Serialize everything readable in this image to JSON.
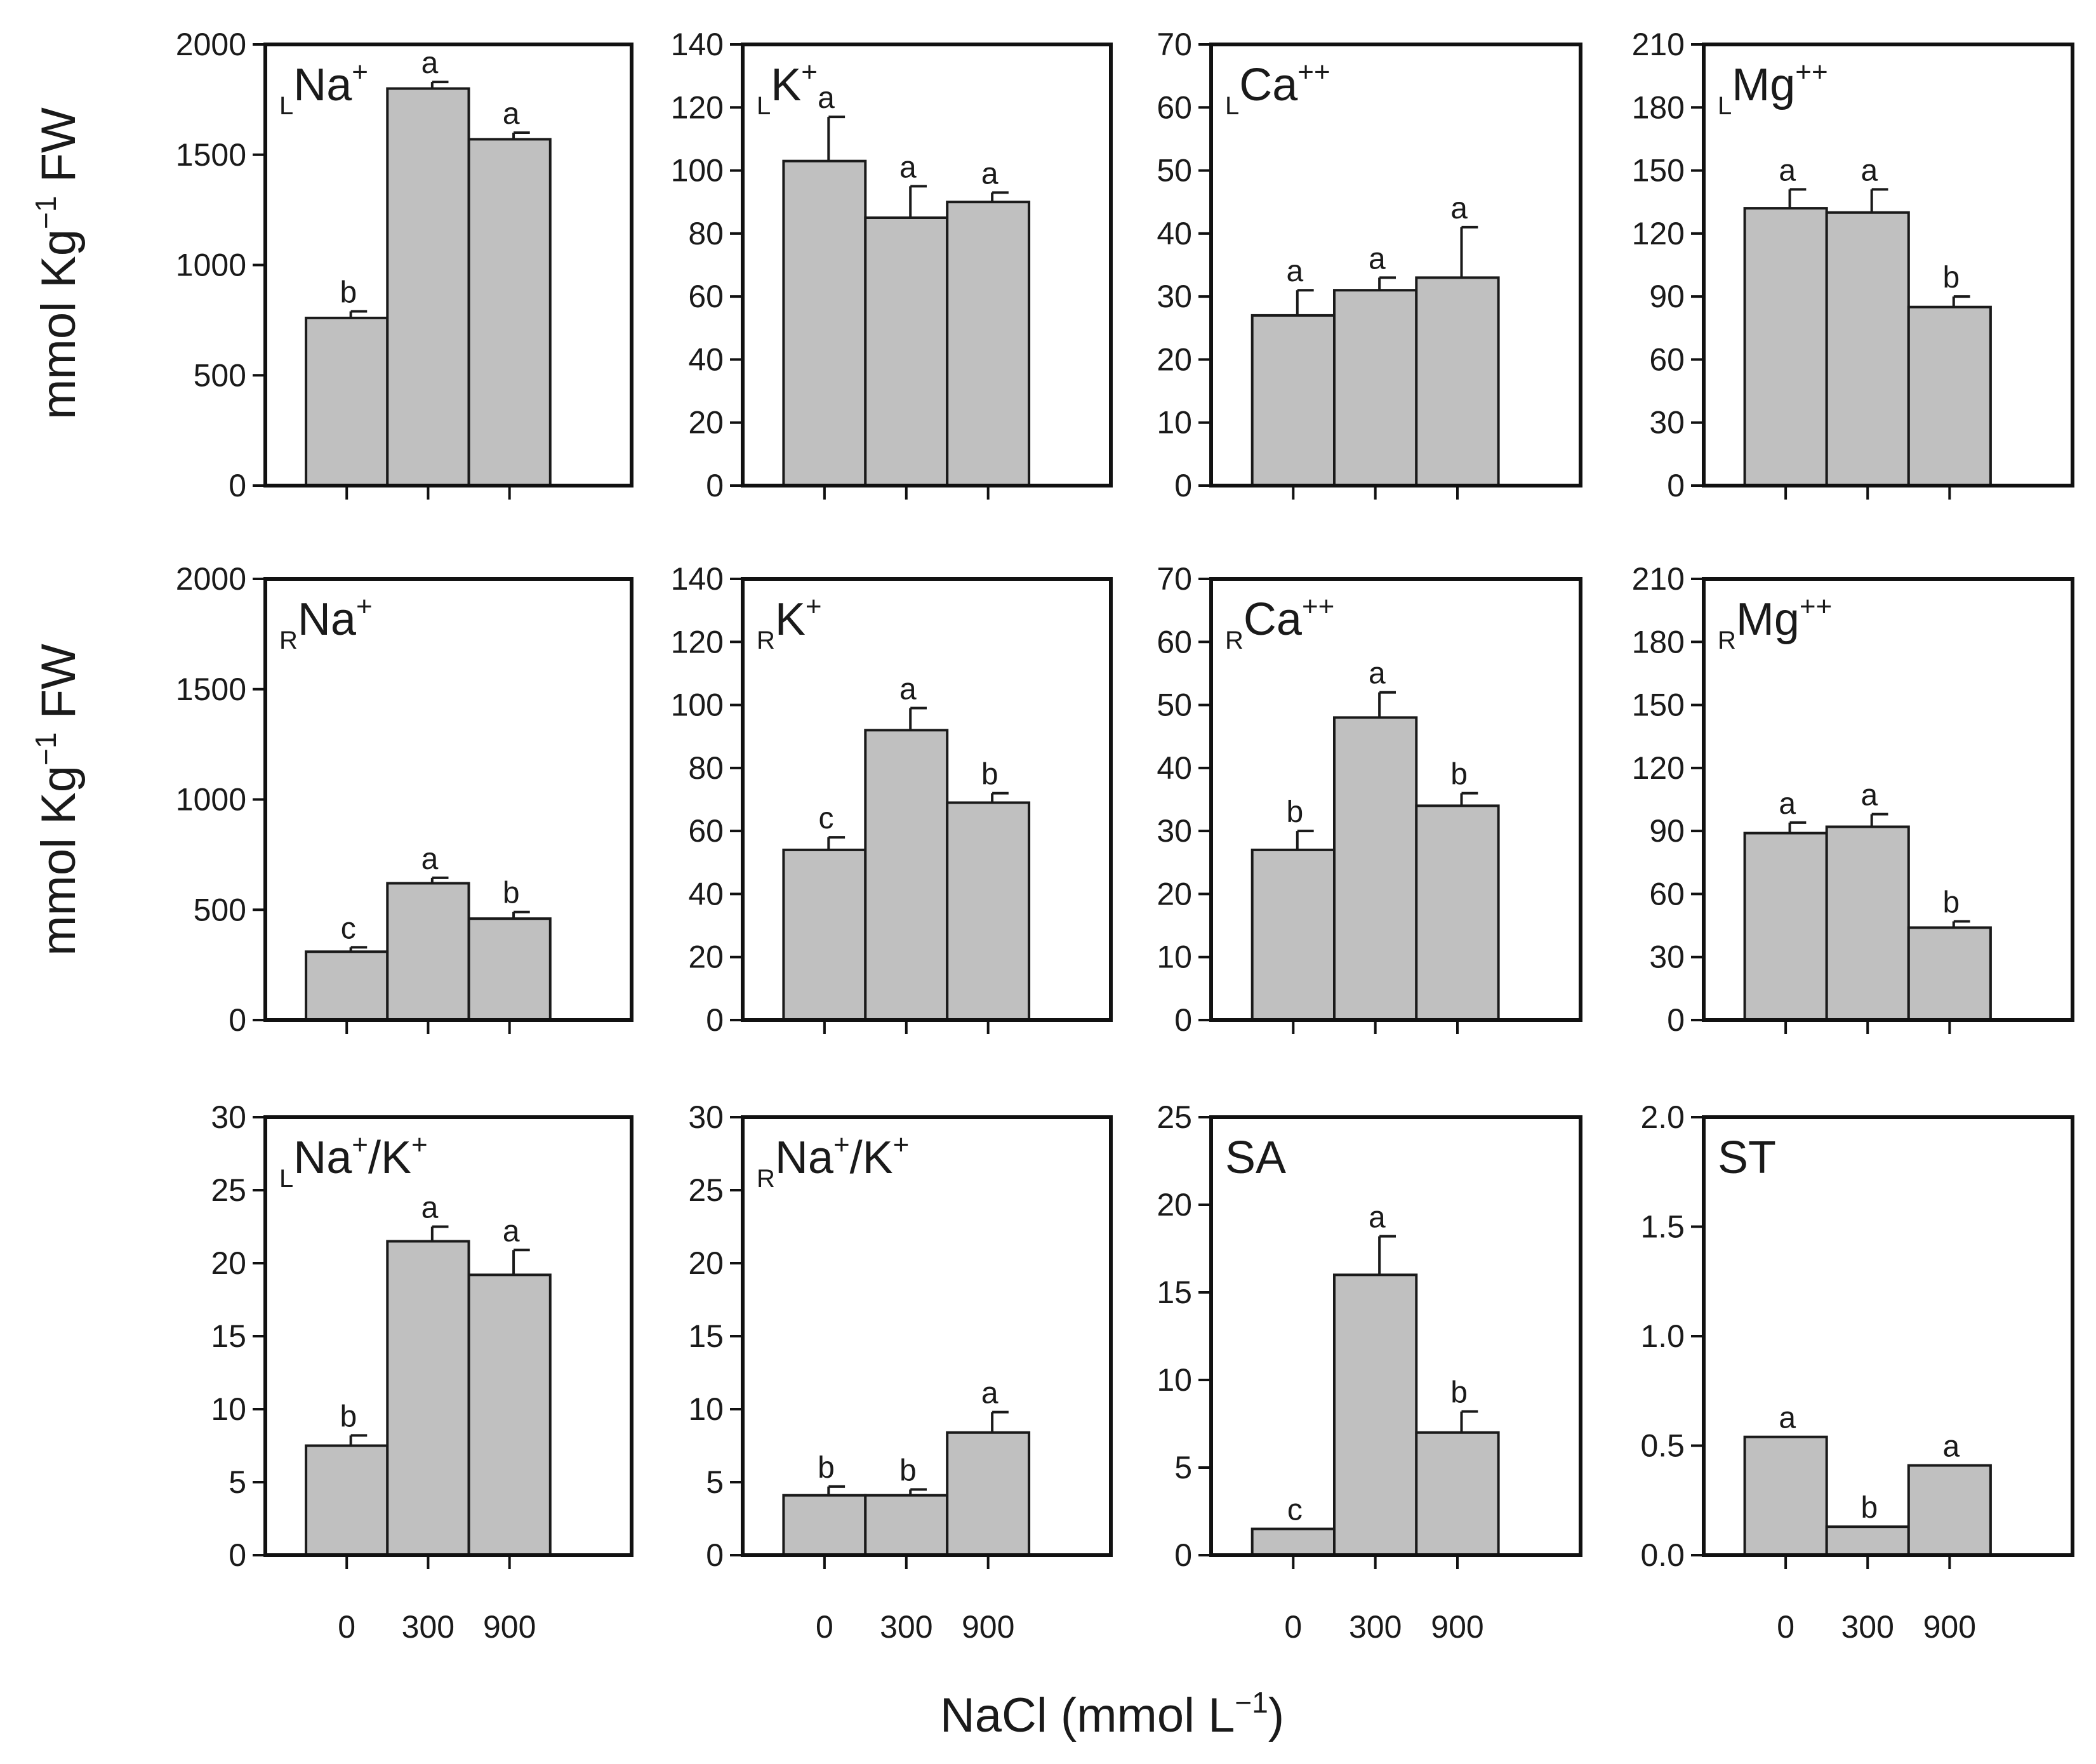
{
  "figure": {
    "y_axis_title": {
      "main": "mmol Kg",
      "sup": "−1",
      "suffix": " FW"
    },
    "x_axis_title": {
      "main": "NaCl (mmol L",
      "sup": "−1",
      "suffix": ")"
    },
    "x_tick_labels": [
      "0",
      "300",
      "900"
    ]
  },
  "chart_data": [
    {
      "type": "bar",
      "label": {
        "sub": "L",
        "main": "Na",
        "sup": "+",
        "tail": ""
      },
      "categories": [
        "0",
        "300",
        "900"
      ],
      "values": [
        760,
        1800,
        1570
      ],
      "errors": [
        30,
        30,
        30
      ],
      "letters": [
        "b",
        "a",
        "a"
      ],
      "ylim": [
        0,
        2000
      ],
      "yticks": [
        "0",
        "500",
        "1000",
        "1500",
        "2000"
      ]
    },
    {
      "type": "bar",
      "label": {
        "sub": "L",
        "main": "K",
        "sup": "+",
        "tail": ""
      },
      "categories": [
        "0",
        "300",
        "900"
      ],
      "values": [
        103,
        85,
        90
      ],
      "errors": [
        14,
        10,
        3
      ],
      "letters": [
        "a",
        "a",
        "a"
      ],
      "ylim": [
        0,
        140
      ],
      "yticks": [
        "0",
        "20",
        "40",
        "60",
        "80",
        "100",
        "120",
        "140"
      ]
    },
    {
      "type": "bar",
      "label": {
        "sub": "L",
        "main": "Ca",
        "sup": "++",
        "tail": ""
      },
      "categories": [
        "0",
        "300",
        "900"
      ],
      "values": [
        27,
        31,
        33
      ],
      "errors": [
        4,
        2,
        8
      ],
      "letters": [
        "a",
        "a",
        "a"
      ],
      "ylim": [
        0,
        70
      ],
      "yticks": [
        "0",
        "10",
        "20",
        "30",
        "40",
        "50",
        "60",
        "70"
      ]
    },
    {
      "type": "bar",
      "label": {
        "sub": "L",
        "main": "Mg",
        "sup": "++",
        "tail": ""
      },
      "categories": [
        "0",
        "300",
        "900"
      ],
      "values": [
        132,
        130,
        85
      ],
      "errors": [
        9,
        11,
        5
      ],
      "letters": [
        "a",
        "a",
        "b"
      ],
      "ylim": [
        0,
        210
      ],
      "yticks": [
        "0",
        "30",
        "60",
        "90",
        "120",
        "150",
        "180",
        "210"
      ]
    },
    {
      "type": "bar",
      "label": {
        "sub": "R",
        "main": "Na",
        "sup": "+",
        "tail": ""
      },
      "categories": [
        "0",
        "300",
        "900"
      ],
      "values": [
        310,
        620,
        460
      ],
      "errors": [
        20,
        25,
        30
      ],
      "letters": [
        "c",
        "a",
        "b"
      ],
      "ylim": [
        0,
        2000
      ],
      "yticks": [
        "0",
        "500",
        "1000",
        "1500",
        "2000"
      ]
    },
    {
      "type": "bar",
      "label": {
        "sub": "R",
        "main": "K",
        "sup": "+",
        "tail": ""
      },
      "categories": [
        "0",
        "300",
        "900"
      ],
      "values": [
        54,
        92,
        69
      ],
      "errors": [
        4,
        7,
        3
      ],
      "letters": [
        "c",
        "a",
        "b"
      ],
      "ylim": [
        0,
        140
      ],
      "yticks": [
        "0",
        "20",
        "40",
        "60",
        "80",
        "100",
        "120",
        "140"
      ]
    },
    {
      "type": "bar",
      "label": {
        "sub": "R",
        "main": "Ca",
        "sup": "++",
        "tail": ""
      },
      "categories": [
        "0",
        "300",
        "900"
      ],
      "values": [
        27,
        48,
        34
      ],
      "errors": [
        3,
        4,
        2
      ],
      "letters": [
        "b",
        "a",
        "b"
      ],
      "ylim": [
        0,
        70
      ],
      "yticks": [
        "0",
        "10",
        "20",
        "30",
        "40",
        "50",
        "60",
        "70"
      ]
    },
    {
      "type": "bar",
      "label": {
        "sub": "R",
        "main": "Mg",
        "sup": "++",
        "tail": ""
      },
      "categories": [
        "0",
        "300",
        "900"
      ],
      "values": [
        89,
        92,
        44
      ],
      "errors": [
        5,
        6,
        3
      ],
      "letters": [
        "a",
        "a",
        "b"
      ],
      "ylim": [
        0,
        210
      ],
      "yticks": [
        "0",
        "30",
        "60",
        "90",
        "120",
        "150",
        "180",
        "210"
      ]
    },
    {
      "type": "bar",
      "label": {
        "sub": "L",
        "main": "Na",
        "sup": "+",
        "tail": "/K",
        "sup2": "+"
      },
      "categories": [
        "0",
        "300",
        "900"
      ],
      "values": [
        7.5,
        21.5,
        19.2
      ],
      "errors": [
        0.7,
        1.0,
        1.7
      ],
      "letters": [
        "b",
        "a",
        "a"
      ],
      "ylim": [
        0,
        30
      ],
      "yticks": [
        "0",
        "5",
        "10",
        "15",
        "20",
        "25",
        "30"
      ]
    },
    {
      "type": "bar",
      "label": {
        "sub": "R",
        "main": "Na",
        "sup": "+",
        "tail": "/K",
        "sup2": "+"
      },
      "categories": [
        "0",
        "300",
        "900"
      ],
      "values": [
        4.1,
        4.1,
        8.4
      ],
      "errors": [
        0.6,
        0.4,
        1.4
      ],
      "letters": [
        "b",
        "b",
        "a"
      ],
      "ylim": [
        0,
        30
      ],
      "yticks": [
        "0",
        "5",
        "10",
        "15",
        "20",
        "25",
        "30"
      ]
    },
    {
      "type": "bar",
      "label": {
        "sub": "",
        "main": "SA",
        "sup": "",
        "tail": ""
      },
      "categories": [
        "0",
        "300",
        "900"
      ],
      "values": [
        1.5,
        16.0,
        7.0
      ],
      "errors": [
        0,
        2.2,
        1.2
      ],
      "letters": [
        "c",
        "a",
        "b"
      ],
      "ylim": [
        0,
        25
      ],
      "yticks": [
        "0",
        "5",
        "10",
        "15",
        "20",
        "25"
      ]
    },
    {
      "type": "bar",
      "label": {
        "sub": "",
        "main": "ST",
        "sup": "",
        "tail": ""
      },
      "categories": [
        "0",
        "300",
        "900"
      ],
      "values": [
        0.54,
        0.13,
        0.41
      ],
      "errors": [
        0,
        0,
        0
      ],
      "letters": [
        "a",
        "b",
        "a"
      ],
      "ylim": [
        0,
        2.0
      ],
      "yticks": [
        "0.0",
        "0.5",
        "1.0",
        "1.5",
        "2.0"
      ]
    }
  ]
}
